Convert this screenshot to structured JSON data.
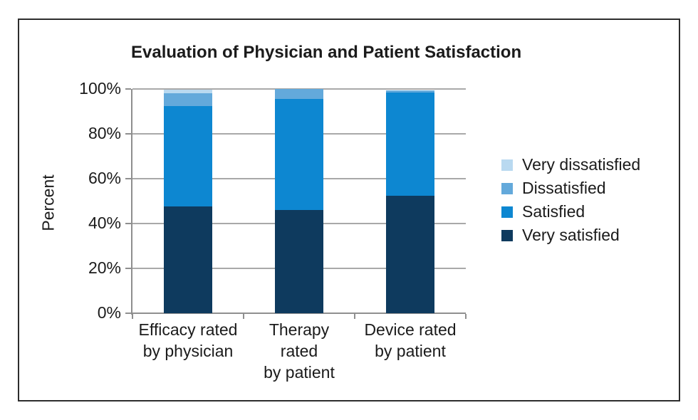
{
  "colors": {
    "background": "#ffffff",
    "frame_border": "#2d2d2d",
    "text": "#1b1b1b",
    "gridline": "#a9a9a9",
    "axis_line": "#8f8f8f",
    "very_dissatisfied": "#b9d9f0",
    "dissatisfied": "#63a9db",
    "satisfied": "#0d87d1",
    "very_satisfied": "#0e3a5e"
  },
  "chart_data": {
    "type": "bar",
    "stacked": true,
    "percent_stacked": true,
    "title": "Evaluation of Physician and Patient Satisfaction",
    "ylabel": "Percent",
    "xlabel": "",
    "ylim": [
      0,
      100
    ],
    "yticks": [
      0,
      20,
      40,
      60,
      80,
      100
    ],
    "ytick_labels": [
      "0%",
      "20%",
      "40%",
      "60%",
      "80%",
      "100%"
    ],
    "grid": true,
    "categories": [
      "Efficacy rated by physician",
      "Therapy rated by patient",
      "Device rated by patient"
    ],
    "categories_lines": [
      [
        "Efficacy rated",
        "by physician"
      ],
      [
        "Therapy",
        "rated",
        "by patient"
      ],
      [
        "Device rated",
        "by patient"
      ]
    ],
    "series": [
      {
        "name": "Very satisfied",
        "color": "#0e3a5e",
        "values": [
          47.5,
          46.0,
          52.5
        ]
      },
      {
        "name": "Satisfied",
        "color": "#0d87d1",
        "values": [
          45.0,
          49.5,
          46.0
        ]
      },
      {
        "name": "Dissatisfied",
        "color": "#63a9db",
        "values": [
          5.5,
          4.5,
          1.0
        ]
      },
      {
        "name": "Very dissatisfied",
        "color": "#b9d9f0",
        "values": [
          1.7,
          0.0,
          0.0
        ]
      }
    ],
    "legend": {
      "position": "right",
      "entries": [
        {
          "label": "Very dissatisfied",
          "color": "#b9d9f0"
        },
        {
          "label": "Dissatisfied",
          "color": "#63a9db"
        },
        {
          "label": "Satisfied",
          "color": "#0d87d1"
        },
        {
          "label": "Very satisfied",
          "color": "#0e3a5e"
        }
      ]
    }
  }
}
